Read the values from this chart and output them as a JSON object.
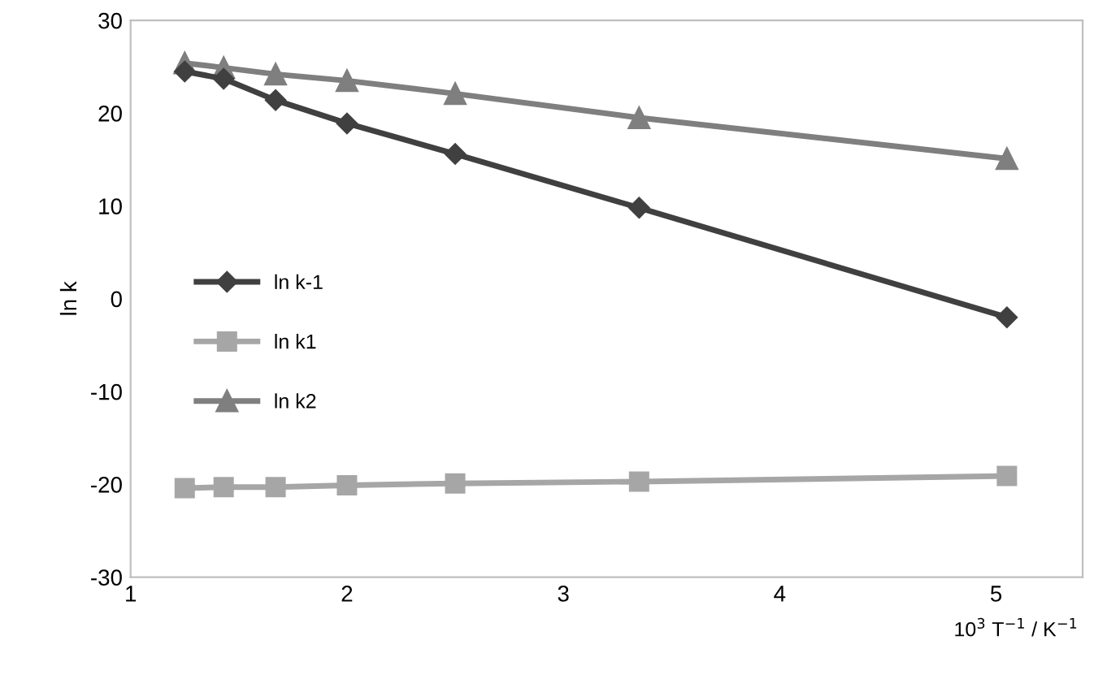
{
  "chart_data": {
    "type": "line",
    "ylabel": "ln k",
    "xlabel": "10$^{3}$ T$^{−1}$ / K$^{−1}$",
    "xlim": [
      1,
      5.4
    ],
    "xticks": [
      1,
      2,
      3,
      4,
      5
    ],
    "ylim": [
      -30,
      30
    ],
    "yticks": [
      -30,
      -20,
      -10,
      0,
      10,
      20,
      30
    ],
    "grid": false,
    "legend": "left",
    "x": [
      1.25,
      1.43,
      1.67,
      2.0,
      2.5,
      3.35,
      5.05
    ],
    "series": [
      {
        "name": "ln k-1",
        "color": "#404040",
        "marker": "diamond",
        "values": [
          24.5,
          23.7,
          21.4,
          18.9,
          15.6,
          9.8,
          -2.0
        ]
      },
      {
        "name": "ln k1",
        "color": "#a6a6a6",
        "marker": "square",
        "values": [
          -20.4,
          -20.3,
          -20.3,
          -20.1,
          -19.9,
          -19.7,
          -19.1
        ]
      },
      {
        "name": "ln k2",
        "color": "#7f7f7f",
        "marker": "triangle",
        "values": [
          25.4,
          24.9,
          24.2,
          23.5,
          22.1,
          19.5,
          15.1
        ]
      }
    ]
  }
}
